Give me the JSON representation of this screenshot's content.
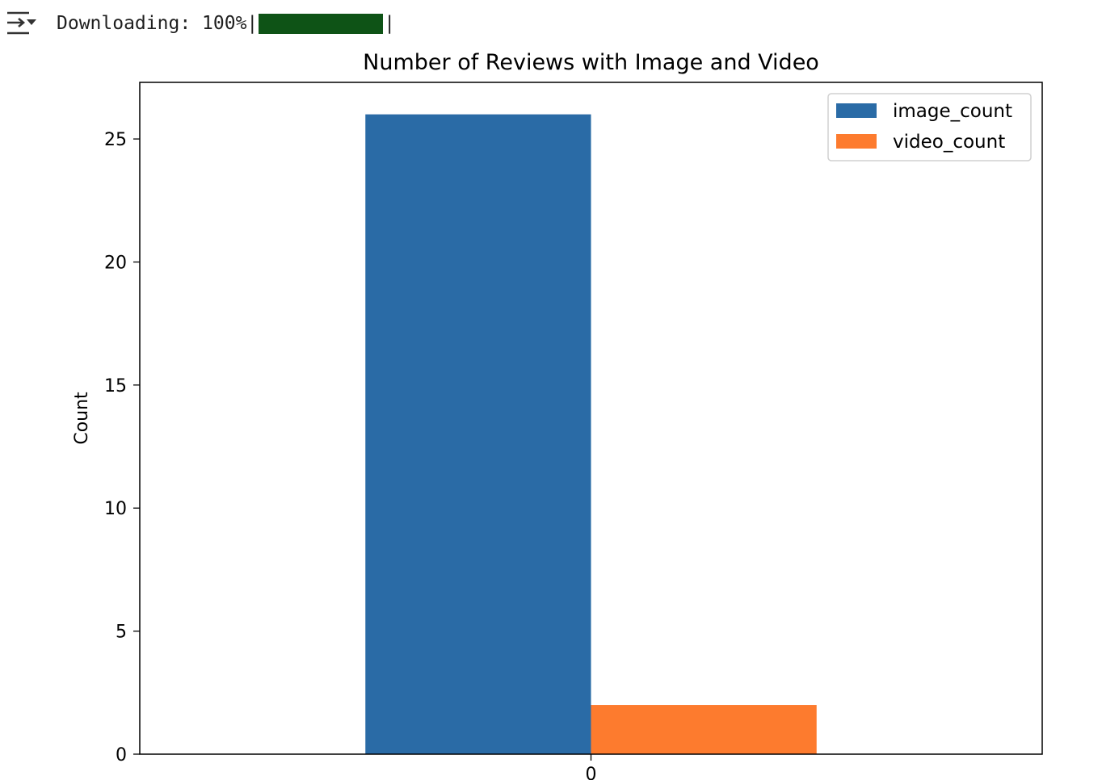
{
  "toolbar": {
    "toggle_icon": "collapse-output-icon"
  },
  "progress": {
    "label": "Downloading:",
    "percent_text": "100%",
    "separator_left": "|",
    "separator_right": "|",
    "value": 1.0,
    "bar_color": "#0e5316"
  },
  "chart_data": {
    "type": "bar",
    "title": "Number of Reviews with Image and Video",
    "xlabel": "",
    "ylabel": "Count",
    "categories": [
      "0"
    ],
    "series": [
      {
        "name": "image_count",
        "values": [
          26
        ],
        "color": "#2a6ba6"
      },
      {
        "name": "video_count",
        "values": [
          2
        ],
        "color": "#fd7b2e"
      }
    ],
    "ylim": [
      0,
      27.3
    ],
    "yticks": [
      0,
      5,
      10,
      15,
      20,
      25
    ],
    "grid": false,
    "legend": "top-right"
  }
}
